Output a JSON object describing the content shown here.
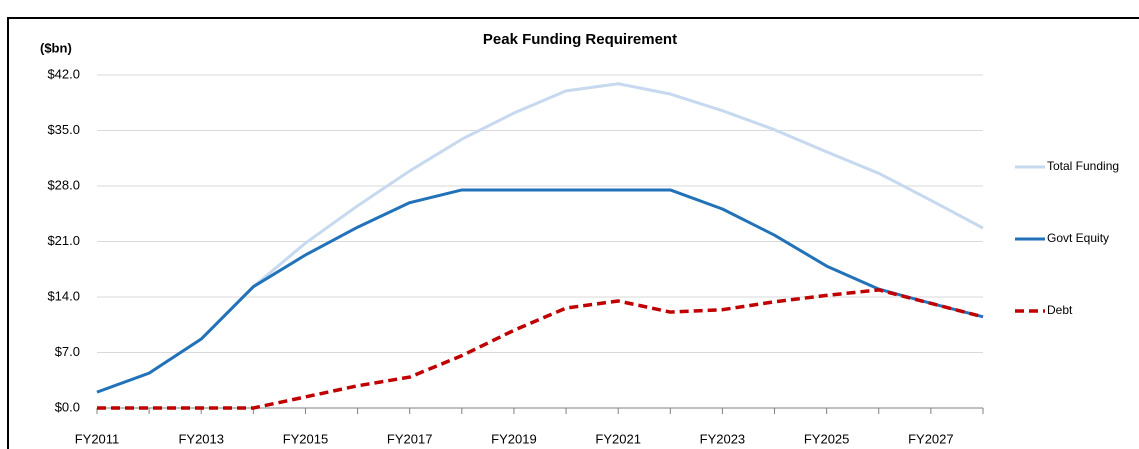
{
  "chart_data": {
    "type": "line",
    "title": "Peak Funding Requirement",
    "y_label": "($bn)",
    "categories": [
      "FY2011",
      null,
      "FY2013",
      null,
      "FY2015",
      null,
      "FY2017",
      null,
      "FY2019",
      null,
      "FY2021",
      null,
      "FY2023",
      null,
      "FY2025",
      null,
      "FY2027",
      null
    ],
    "series": [
      {
        "name": "Total Funding",
        "color": "#c6d9ef",
        "dash": false,
        "values": [
          2.0,
          4.4,
          8.7,
          15.3,
          20.8,
          25.5,
          29.9,
          33.9,
          37.2,
          40.0,
          40.9,
          39.6,
          37.5,
          35.1,
          32.3,
          29.6,
          26.2,
          22.7
        ]
      },
      {
        "name": "Govt Equity",
        "color": "#2272b9",
        "dash": false,
        "values": [
          2.0,
          4.4,
          8.7,
          15.3,
          19.3,
          22.8,
          25.9,
          27.5,
          27.5,
          27.5,
          27.5,
          27.5,
          25.1,
          21.8,
          17.9,
          15.0,
          13.2,
          11.5
        ]
      },
      {
        "name": "Debt",
        "color": "#c00000",
        "dash": true,
        "values": [
          0,
          0,
          0,
          0,
          1.4,
          2.8,
          3.9,
          6.6,
          9.8,
          12.6,
          13.5,
          12.1,
          12.4,
          13.4,
          14.2,
          14.9,
          13.2,
          11.5
        ]
      }
    ],
    "ylim": [
      0,
      42
    ],
    "yticks": [
      {
        "value": 0,
        "label": "$0.0"
      },
      {
        "value": 7,
        "label": "$7.0"
      },
      {
        "value": 14,
        "label": "$14.0"
      },
      {
        "value": 21,
        "label": "$21.0"
      },
      {
        "value": 28,
        "label": "$28.0"
      },
      {
        "value": 35,
        "label": "$35.0"
      },
      {
        "value": 42,
        "label": "$42.0"
      }
    ],
    "grid": true,
    "legend": "right"
  }
}
